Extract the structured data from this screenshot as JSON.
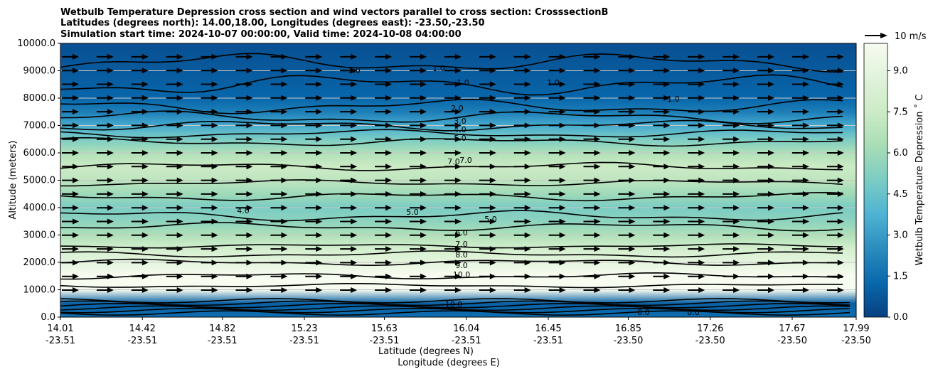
{
  "titles": [
    "Wetbulb Temperature Depression cross section and wind vectors parallel to cross section: CrosssectionB",
    "Latitudes (degrees north): 14.00,18.00, Longitudes (degrees east): -23.50,-23.50",
    "Simulation start time: 2024-10-07 00:00:00, Valid time: 2024-10-08 04:00:00"
  ],
  "quiver_key": "10 m/s",
  "chart_data": {
    "type": "heatmap",
    "ylabel": "Altitude (meters)",
    "xlabel_lat": "Latitude (degrees N)",
    "xlabel_lon": "Longitude (degrees E)",
    "ylim": [
      0,
      10000
    ],
    "yticks": [
      "0.0",
      "1000.0",
      "2000.0",
      "3000.0",
      "4000.0",
      "5000.0",
      "6000.0",
      "7000.0",
      "8000.0",
      "9000.0",
      "10000.0"
    ],
    "xticks_lat": [
      "14.01",
      "14.42",
      "14.82",
      "15.23",
      "15.63",
      "16.04",
      "16.45",
      "16.85",
      "17.26",
      "17.67",
      "17.99"
    ],
    "xticks_lon": [
      "-23.51",
      "-23.51",
      "-23.51",
      "-23.51",
      "-23.51",
      "-23.51",
      "-23.51",
      "-23.50",
      "-23.50",
      "-23.50",
      "-23.50"
    ],
    "colorbar_label": "Wetbulb Temperature Depression ˚ C",
    "colorbar_ticks": [
      "0.0",
      "1.5",
      "3.0",
      "4.5",
      "6.0",
      "7.5",
      "9.0"
    ],
    "colorbar_range": [
      0,
      10
    ],
    "colormap": [
      "#084081",
      "#0868ac",
      "#2b8cbe",
      "#4eb3d3",
      "#7bccc4",
      "#a8ddb5",
      "#ccebc5",
      "#e0f3db",
      "#f7fcf0"
    ],
    "grid": true,
    "contour_labels": [
      "1.0",
      "1.0",
      "1.0",
      "1.0",
      "1.0",
      "2.0",
      "3.0",
      "4.0",
      "5.0",
      "7.0",
      "7.0",
      "4.0",
      "5.0",
      "5.0",
      "6.0",
      "7.0",
      "8.0",
      "9.0",
      "10.0",
      "0.0",
      "0.0",
      "10.0"
    ],
    "depression_profile": [
      {
        "altitude": 0,
        "value": 1.5
      },
      {
        "altitude": 500,
        "value": 1.0
      },
      {
        "altitude": 1000,
        "value": 10.0
      },
      {
        "altitude": 1500,
        "value": 10.0
      },
      {
        "altitude": 2000,
        "value": 9.0
      },
      {
        "altitude": 2500,
        "value": 8.0
      },
      {
        "altitude": 3000,
        "value": 6.5
      },
      {
        "altitude": 3500,
        "value": 5.5
      },
      {
        "altitude": 4000,
        "value": 5.0
      },
      {
        "altitude": 4500,
        "value": 6.0
      },
      {
        "altitude": 5000,
        "value": 7.0
      },
      {
        "altitude": 5500,
        "value": 7.5
      },
      {
        "altitude": 6000,
        "value": 6.5
      },
      {
        "altitude": 6500,
        "value": 5.0
      },
      {
        "altitude": 7000,
        "value": 3.5
      },
      {
        "altitude": 7500,
        "value": 2.0
      },
      {
        "altitude": 8000,
        "value": 1.2
      },
      {
        "altitude": 9000,
        "value": 0.8
      },
      {
        "altitude": 10000,
        "value": 0.5
      }
    ]
  }
}
